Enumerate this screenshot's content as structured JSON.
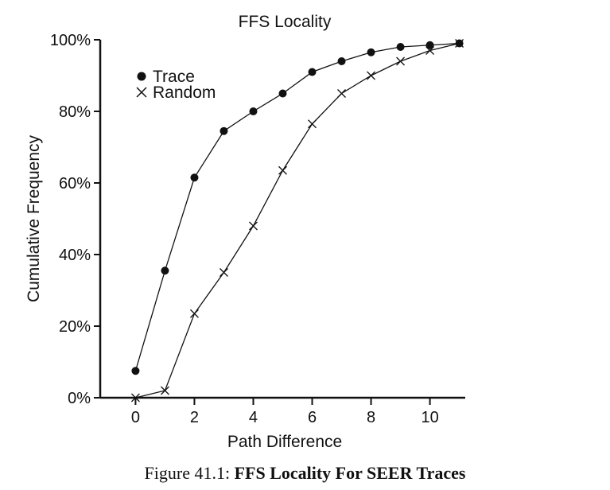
{
  "chart_data": {
    "type": "line",
    "title": "FFS Locality",
    "xlabel": "Path Difference",
    "ylabel": "Cumulative Frequency",
    "xlim": [
      -1.2,
      11.2
    ],
    "ylim": [
      0,
      100
    ],
    "xticks": [
      0,
      2,
      4,
      6,
      8,
      10
    ],
    "yticks": [
      0,
      20,
      40,
      60,
      80,
      100
    ],
    "yticklabels": [
      "0%",
      "20%",
      "40%",
      "60%",
      "80%",
      "100%"
    ],
    "grid": false,
    "legend_position": "top-left",
    "series": [
      {
        "name": "Trace",
        "marker": "filled-circle",
        "x": [
          0,
          1,
          2,
          3,
          4,
          5,
          6,
          7,
          8,
          9,
          10,
          11
        ],
        "y": [
          7.5,
          35.5,
          61.5,
          74.5,
          80,
          85,
          91,
          94,
          96.5,
          98,
          98.5,
          99
        ]
      },
      {
        "name": "Random",
        "marker": "cross",
        "x": [
          0,
          1,
          2,
          3,
          4,
          5,
          6,
          7,
          8,
          9,
          10,
          11
        ],
        "y": [
          0,
          2,
          23.5,
          35,
          48,
          63.5,
          76.5,
          85,
          90,
          94,
          97,
          99
        ]
      }
    ]
  },
  "caption": {
    "prefix": "Figure 41.1:",
    "bold": "FFS Locality For SEER Traces"
  }
}
